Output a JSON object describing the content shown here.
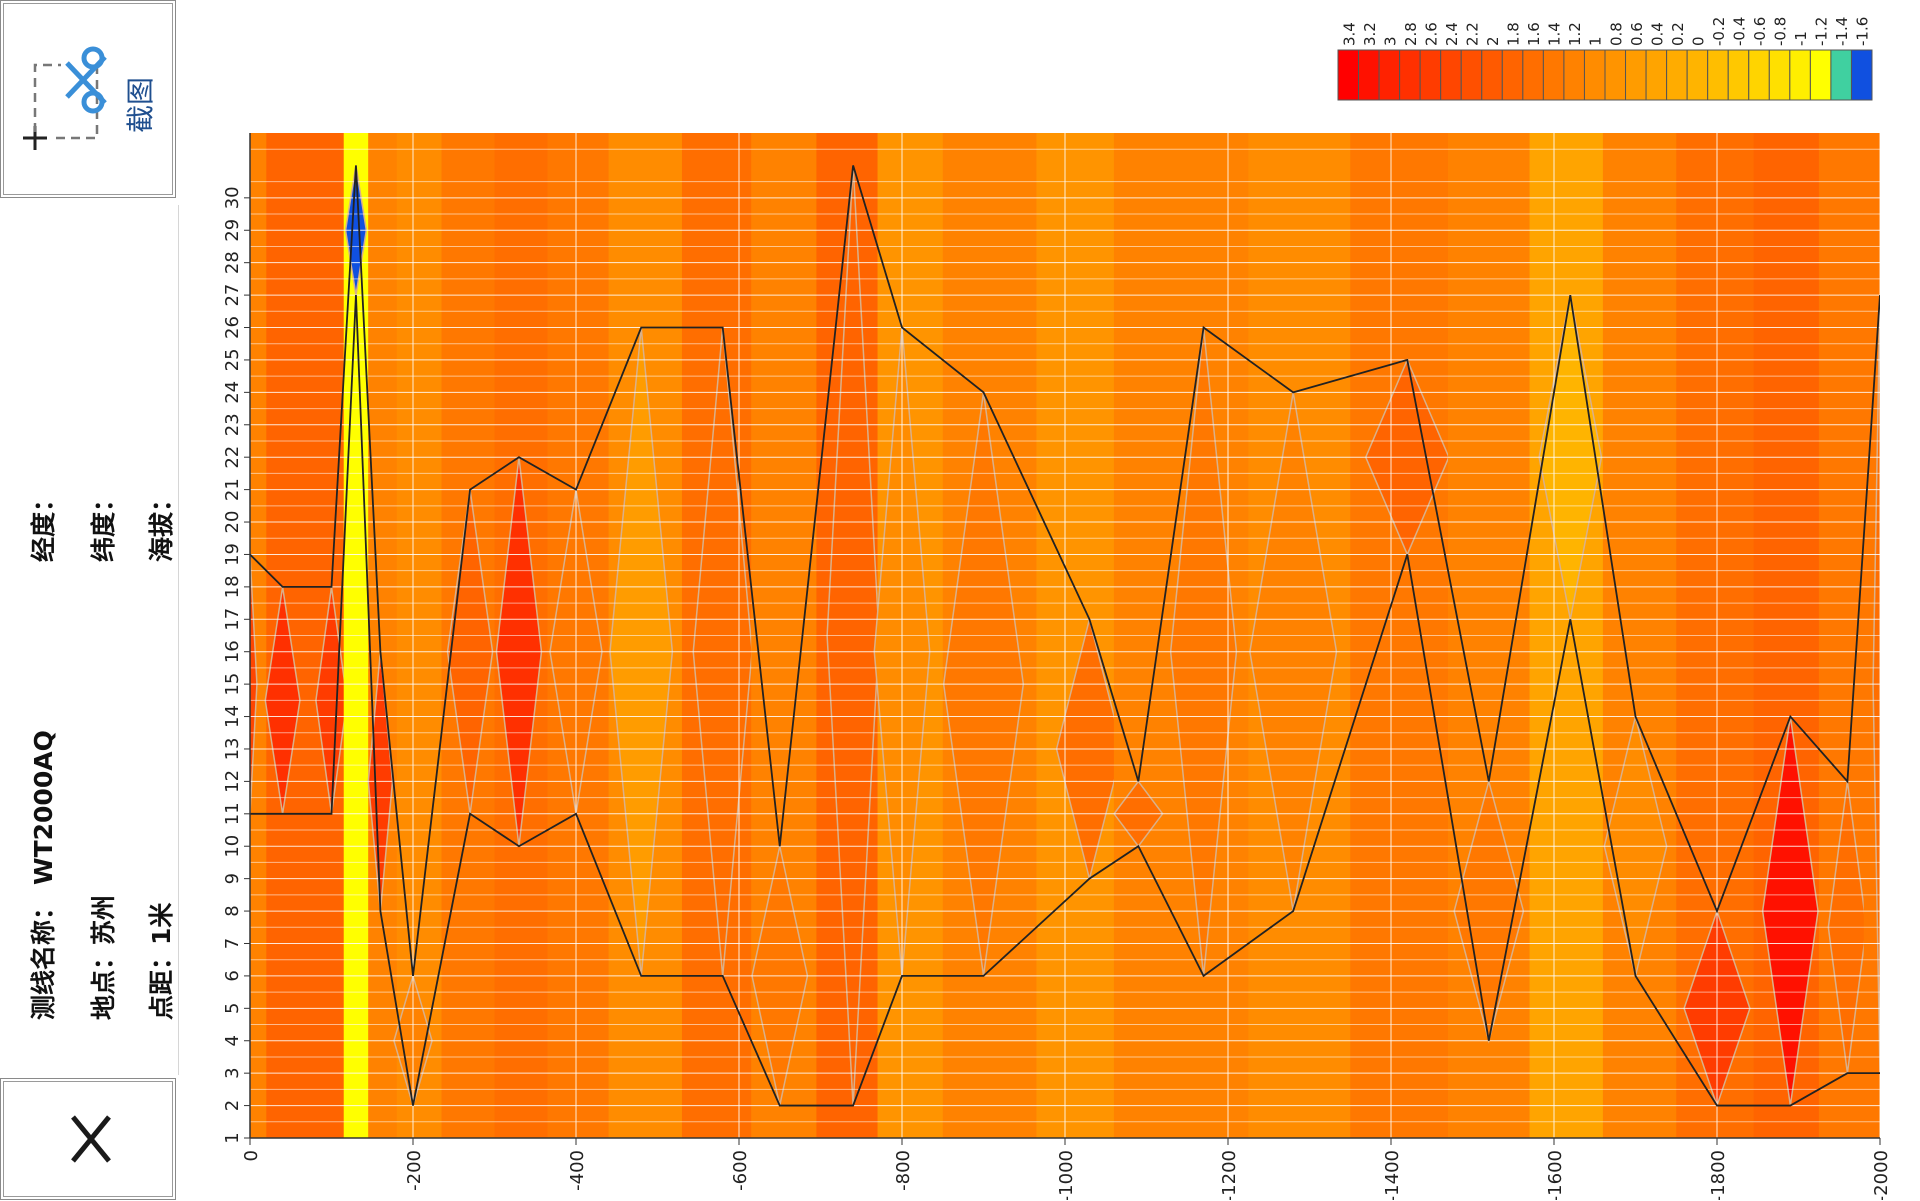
{
  "toolbar": {
    "screenshot_label": "截图"
  },
  "info": {
    "line_name_label": "测线名称：",
    "line_name_value": "WT2000AQ",
    "location_label": "地点：",
    "location_value": "苏州",
    "spacing_label": "点距：",
    "spacing_value": "1米",
    "longitude_label": "经度：",
    "longitude_value": "",
    "latitude_label": "纬度：",
    "latitude_value": "",
    "altitude_label": "海拔：",
    "altitude_value": ""
  },
  "chart_data": {
    "type": "heatmap",
    "title": "",
    "xlabel": "",
    "ylabel": "",
    "x_ticks": [
      "0",
      "-200",
      "-400",
      "-600",
      "-800",
      "-1000",
      "-1200",
      "-1400",
      "-1600",
      "-1800",
      "-2000"
    ],
    "y_ticks": [
      "1",
      "2",
      "3",
      "4",
      "5",
      "6",
      "7",
      "8",
      "9",
      "10",
      "11",
      "12",
      "13",
      "14",
      "15",
      "16",
      "17",
      "18",
      "19",
      "20",
      "21",
      "22",
      "23",
      "24",
      "25",
      "26",
      "27",
      "28",
      "29",
      "30"
    ],
    "xlim": [
      0,
      -2000
    ],
    "ylim": [
      1,
      32
    ],
    "grid": true,
    "legend": {
      "position": "top-right",
      "levels": [
        "3.4",
        "3.2",
        "3",
        "2.8",
        "2.6",
        "2.4",
        "2.2",
        "2",
        "1.8",
        "1.6",
        "1.4",
        "1.2",
        "1",
        "0.8",
        "0.6",
        "0.4",
        "0.2",
        "0",
        "-0.2",
        "-0.4",
        "-0.6",
        "-0.8",
        "-1",
        "-1.2",
        "-1.4",
        "-1.6"
      ],
      "colors": [
        "#ff0000",
        "#ff1100",
        "#ff2200",
        "#ff3000",
        "#ff3c00",
        "#ff4600",
        "#ff5000",
        "#ff5a00",
        "#ff6400",
        "#ff6e00",
        "#ff7800",
        "#ff8200",
        "#ff8c00",
        "#ff9400",
        "#ff9c00",
        "#ffa400",
        "#ffac00",
        "#ffb400",
        "#ffbe00",
        "#ffc800",
        "#ffd400",
        "#ffe000",
        "#ffee00",
        "#ffff00",
        "#40d0a0",
        "#1050e0"
      ]
    },
    "columns": [
      {
        "x": 0,
        "base": 1.2,
        "high_y": [
          11,
          19
        ],
        "high_v": 2.4
      },
      {
        "x": -40,
        "base": 1.8,
        "high_y": [
          11,
          18
        ],
        "high_v": 2.8
      },
      {
        "x": -100,
        "base": 1.9,
        "high_y": [
          11,
          18
        ],
        "high_v": 2.6
      },
      {
        "x": -130,
        "base": -1.2,
        "high_y": [
          27,
          31
        ],
        "high_v": -1.6
      },
      {
        "x": -160,
        "base": 1.2,
        "high_y": [
          8,
          16
        ],
        "high_v": 2.6
      },
      {
        "x": -200,
        "base": 1.0,
        "high_y": [
          2,
          6
        ],
        "high_v": 1.2
      },
      {
        "x": -270,
        "base": 1.4,
        "high_y": [
          11,
          21
        ],
        "high_v": 1.8
      },
      {
        "x": -330,
        "base": 1.6,
        "high_y": [
          10,
          22
        ],
        "high_v": 2.8
      },
      {
        "x": -400,
        "base": 1.4,
        "high_y": [
          11,
          21
        ],
        "high_v": 1.4
      },
      {
        "x": -480,
        "base": 0.9,
        "high_y": [
          6,
          26
        ],
        "high_v": 0.7
      },
      {
        "x": -580,
        "base": 1.5,
        "high_y": [
          6,
          26
        ],
        "high_v": 1.7
      },
      {
        "x": -650,
        "base": 1.1,
        "high_y": [
          2,
          10
        ],
        "high_v": 1.3
      },
      {
        "x": -740,
        "base": 1.8,
        "high_y": [
          2,
          31
        ],
        "high_v": 1.9
      },
      {
        "x": -800,
        "base": 0.8,
        "high_y": [
          6,
          26
        ],
        "high_v": 1.0
      },
      {
        "x": -900,
        "base": 1.2,
        "high_y": [
          6,
          24
        ],
        "high_v": 1.4
      },
      {
        "x": -1030,
        "base": 0.8,
        "high_y": [
          9,
          17
        ],
        "high_v": 1.6
      },
      {
        "x": -1090,
        "base": 1.1,
        "high_y": [
          10,
          12
        ],
        "high_v": 1.6
      },
      {
        "x": -1170,
        "base": 1.2,
        "high_y": [
          6,
          26
        ],
        "high_v": 1.3
      },
      {
        "x": -1280,
        "base": 1.0,
        "high_y": [
          8,
          24
        ],
        "high_v": 1.2
      },
      {
        "x": -1420,
        "base": 1.3,
        "high_y": [
          19,
          25
        ],
        "high_v": 1.8
      },
      {
        "x": -1520,
        "base": 1.2,
        "high_y": [
          4,
          12
        ],
        "high_v": 1.4
      },
      {
        "x": -1620,
        "base": 0.4,
        "high_y": [
          17,
          27
        ],
        "high_v": 0.0
      },
      {
        "x": -1700,
        "base": 1.1,
        "high_y": [
          6,
          14
        ],
        "high_v": 1.0
      },
      {
        "x": -1800,
        "base": 1.6,
        "high_y": [
          2,
          8
        ],
        "high_v": 2.6
      },
      {
        "x": -1890,
        "base": 1.8,
        "high_y": [
          2,
          14
        ],
        "high_v": 3.2
      },
      {
        "x": -1960,
        "base": 1.3,
        "high_y": [
          3,
          12
        ],
        "high_v": 1.6
      },
      {
        "x": -2000,
        "base": 1.4,
        "high_y": [
          3,
          27
        ],
        "high_v": 1.6
      }
    ]
  }
}
